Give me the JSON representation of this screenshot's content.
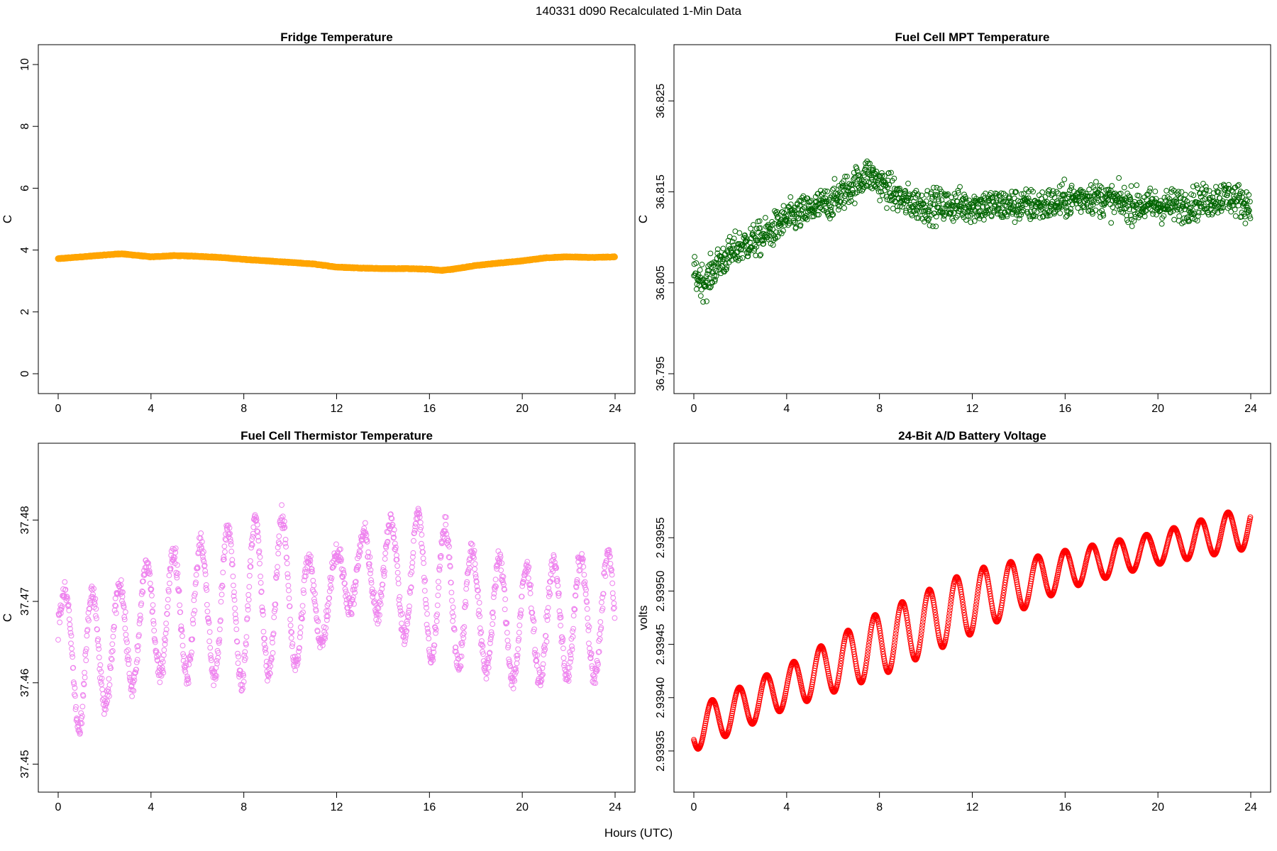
{
  "title": "140331    d090    Recalculated 1-Min Data",
  "xlabel": "Hours (UTC)",
  "chart_data": [
    {
      "type": "scatter",
      "title": "Fridge Temperature",
      "ylabel": "C",
      "xlim": [
        0,
        24
      ],
      "ylim": [
        0,
        10
      ],
      "xticks": [
        "0",
        "4",
        "8",
        "12",
        "16",
        "20",
        "24"
      ],
      "yticks": [
        "0",
        "2",
        "4",
        "6",
        "8",
        "10"
      ],
      "color": "#FFA500",
      "marker": "filled",
      "series": [
        {
          "x": [
            0,
            1,
            2,
            2.7,
            3.5,
            4,
            5,
            6,
            7,
            8,
            9,
            10,
            11,
            12,
            13,
            14,
            15,
            16,
            16.5,
            17,
            18,
            19,
            20,
            21,
            22,
            23,
            24
          ],
          "y": [
            3.72,
            3.78,
            3.84,
            3.88,
            3.82,
            3.78,
            3.82,
            3.8,
            3.76,
            3.7,
            3.65,
            3.6,
            3.55,
            3.45,
            3.42,
            3.4,
            3.4,
            3.38,
            3.34,
            3.38,
            3.5,
            3.58,
            3.65,
            3.75,
            3.78,
            3.76,
            3.78
          ]
        }
      ]
    },
    {
      "type": "scatter",
      "title": "Fuel Cell MPT Temperature",
      "ylabel": "C",
      "xlim": [
        0,
        24
      ],
      "ylim": [
        36.795,
        36.829
      ],
      "xticks": [
        "0",
        "4",
        "8",
        "12",
        "16",
        "20",
        "24"
      ],
      "yticks": [
        "36.795",
        "36.805",
        "36.815",
        "36.825"
      ],
      "ytick_values": [
        36.795,
        36.805,
        36.815,
        36.825
      ],
      "color": "#006400",
      "marker": "open",
      "series": [
        {
          "x": [
            0,
            0.5,
            1,
            2,
            3,
            4,
            5,
            6,
            7,
            7.5,
            8,
            9,
            10,
            11,
            12,
            13,
            14,
            15,
            16,
            17,
            18,
            19,
            20,
            21,
            22,
            23,
            24
          ],
          "y": [
            36.806,
            36.805,
            36.807,
            36.809,
            36.81,
            36.812,
            36.813,
            36.814,
            36.816,
            36.817,
            36.816,
            36.814,
            36.8135,
            36.8135,
            36.8135,
            36.8135,
            36.8135,
            36.8135,
            36.814,
            36.8145,
            36.814,
            36.8135,
            36.8135,
            36.8135,
            36.814,
            36.8145,
            36.8135
          ],
          "spread": 0.0036
        }
      ]
    },
    {
      "type": "scatter",
      "title": "Fuel Cell Thermistor Temperature",
      "ylabel": "C",
      "xlim": [
        0,
        24
      ],
      "ylim": [
        37.449,
        37.487
      ],
      "xticks": [
        "0",
        "4",
        "8",
        "12",
        "16",
        "20",
        "24"
      ],
      "yticks": [
        "37.45",
        "37.46",
        "37.47",
        "37.48"
      ],
      "ytick_values": [
        37.45,
        37.46,
        37.47,
        37.48
      ],
      "color": "#EE82EE",
      "marker": "open",
      "series": [
        {
          "x": [
            0,
            1,
            2,
            4,
            6,
            8,
            10,
            11,
            12,
            14,
            16,
            18,
            20,
            22,
            24
          ],
          "y": [
            37.467,
            37.462,
            37.464,
            37.468,
            37.469,
            37.47,
            37.471,
            37.468,
            37.473,
            37.474,
            37.472,
            37.469,
            37.467,
            37.468,
            37.468
          ],
          "amplitude": [
            0.004,
            0.009,
            0.007,
            0.007,
            0.008,
            0.01,
            0.009,
            0.006,
            0.003,
            0.006,
            0.009,
            0.007,
            0.007,
            0.007,
            0.008
          ],
          "period_hours": 1.17
        }
      ]
    },
    {
      "type": "scatter",
      "title": "24-Bit A/D Battery Voltage",
      "ylabel": "volts",
      "xlim": [
        0,
        24
      ],
      "ylim": [
        2.93933,
        2.93962
      ],
      "xticks": [
        "0",
        "4",
        "8",
        "12",
        "16",
        "20",
        "24"
      ],
      "yticks": [
        "2.93935",
        "2.93940",
        "2.93945",
        "2.93950",
        "2.93955"
      ],
      "ytick_values": [
        2.93935,
        2.9394,
        2.93945,
        2.9395,
        2.93955
      ],
      "color": "#FF0000",
      "marker": "open",
      "series": [
        {
          "x": [
            0,
            4,
            8,
            12,
            16,
            20,
            24
          ],
          "y": [
            2.93937,
            2.93941,
            2.93945,
            2.93949,
            2.93952,
            2.93954,
            2.93956
          ],
          "amplitude": [
            2e-05,
            2e-05,
            3e-05,
            3e-05,
            1.8e-05,
            1.5e-05,
            2e-05
          ],
          "period_hours": 1.17
        }
      ]
    }
  ]
}
